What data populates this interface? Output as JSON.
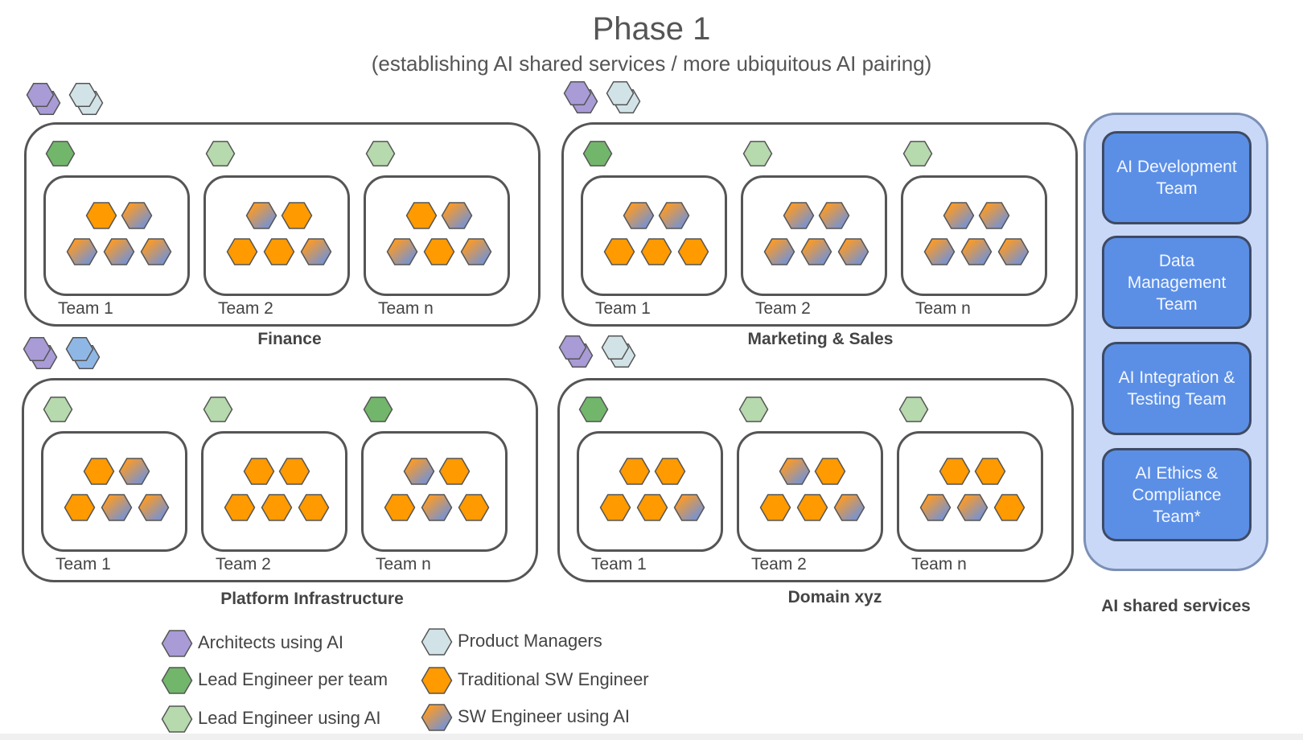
{
  "title": "Phase 1",
  "subtitle": "(establishing AI shared services / more ubiquitous AI pairing)",
  "colors": {
    "architect": "#a99bd6",
    "product_manager": "#d2e3e8",
    "product_manager_blue": "#8fb7e6",
    "lead_engineer": "#72b66b",
    "lead_engineer_ai": "#b6d9ad",
    "traditional_engineer": "#ff9a00",
    "ai_engineer_a": "#f59a2f",
    "ai_engineer_b": "#7e93c8",
    "hex_stroke": "#555555",
    "shared_bg": "#c9d8f7",
    "service_bg": "#5b8fe6"
  },
  "domains": [
    {
      "name": "Finance",
      "teams": [
        {
          "label": "Team 1",
          "lead": "lead_engineer",
          "members": [
            "traditional",
            "ai",
            "ai",
            "ai",
            "ai"
          ]
        },
        {
          "label": "Team 2",
          "lead": "lead_engineer_ai",
          "members": [
            "ai",
            "traditional",
            "traditional",
            "traditional",
            "ai"
          ]
        },
        {
          "label": "Team n",
          "lead": "lead_engineer_ai",
          "members": [
            "traditional",
            "ai",
            "ai",
            "traditional",
            "ai"
          ]
        }
      ]
    },
    {
      "name": "Marketing & Sales",
      "teams": [
        {
          "label": "Team 1",
          "lead": "lead_engineer",
          "members": [
            "ai",
            "ai",
            "traditional",
            "traditional",
            "traditional"
          ]
        },
        {
          "label": "Team 2",
          "lead": "lead_engineer_ai",
          "members": [
            "ai",
            "ai",
            "ai",
            "ai",
            "ai"
          ]
        },
        {
          "label": "Team n",
          "lead": "lead_engineer_ai",
          "members": [
            "ai",
            "ai",
            "ai",
            "ai",
            "ai"
          ]
        }
      ]
    },
    {
      "name": "Platform Infrastructure",
      "teams": [
        {
          "label": "Team 1",
          "lead": "lead_engineer_ai",
          "members": [
            "traditional",
            "ai",
            "traditional",
            "ai",
            "ai"
          ]
        },
        {
          "label": "Team 2",
          "lead": "lead_engineer_ai",
          "members": [
            "traditional",
            "traditional",
            "traditional",
            "traditional",
            "traditional"
          ]
        },
        {
          "label": "Team n",
          "lead": "lead_engineer",
          "members": [
            "ai",
            "traditional",
            "traditional",
            "ai",
            "traditional"
          ]
        }
      ]
    },
    {
      "name": "Domain xyz",
      "teams": [
        {
          "label": "Team 1",
          "lead": "lead_engineer",
          "members": [
            "traditional",
            "traditional",
            "traditional",
            "traditional",
            "ai"
          ]
        },
        {
          "label": "Team 2",
          "lead": "lead_engineer_ai",
          "members": [
            "ai",
            "traditional",
            "traditional",
            "traditional",
            "ai"
          ]
        },
        {
          "label": "Team n",
          "lead": "lead_engineer_ai",
          "members": [
            "traditional",
            "traditional",
            "ai",
            "ai",
            "traditional"
          ]
        }
      ]
    }
  ],
  "domain_badges": [
    {
      "pair": [
        "architect",
        "product_manager"
      ]
    },
    {
      "pair": [
        "architect",
        "product_manager"
      ]
    },
    {
      "pair": [
        "architect",
        "product_manager_blue"
      ]
    },
    {
      "pair": [
        "architect",
        "product_manager"
      ]
    }
  ],
  "shared_services": {
    "label": "AI shared services",
    "teams": [
      "AI Development Team",
      "Data Management Team",
      "AI Integration & Testing Team",
      "AI Ethics & Compliance Team*"
    ]
  },
  "legend": [
    {
      "label": "Architects using AI",
      "type": "architect"
    },
    {
      "label": "Lead Engineer per team",
      "type": "lead_engineer"
    },
    {
      "label": "Lead Engineer using AI",
      "type": "lead_engineer_ai"
    },
    {
      "label": "Product Managers",
      "type": "product_manager"
    },
    {
      "label": "Traditional SW Engineer",
      "type": "traditional"
    },
    {
      "label": "SW Engineer using AI",
      "type": "ai"
    }
  ]
}
